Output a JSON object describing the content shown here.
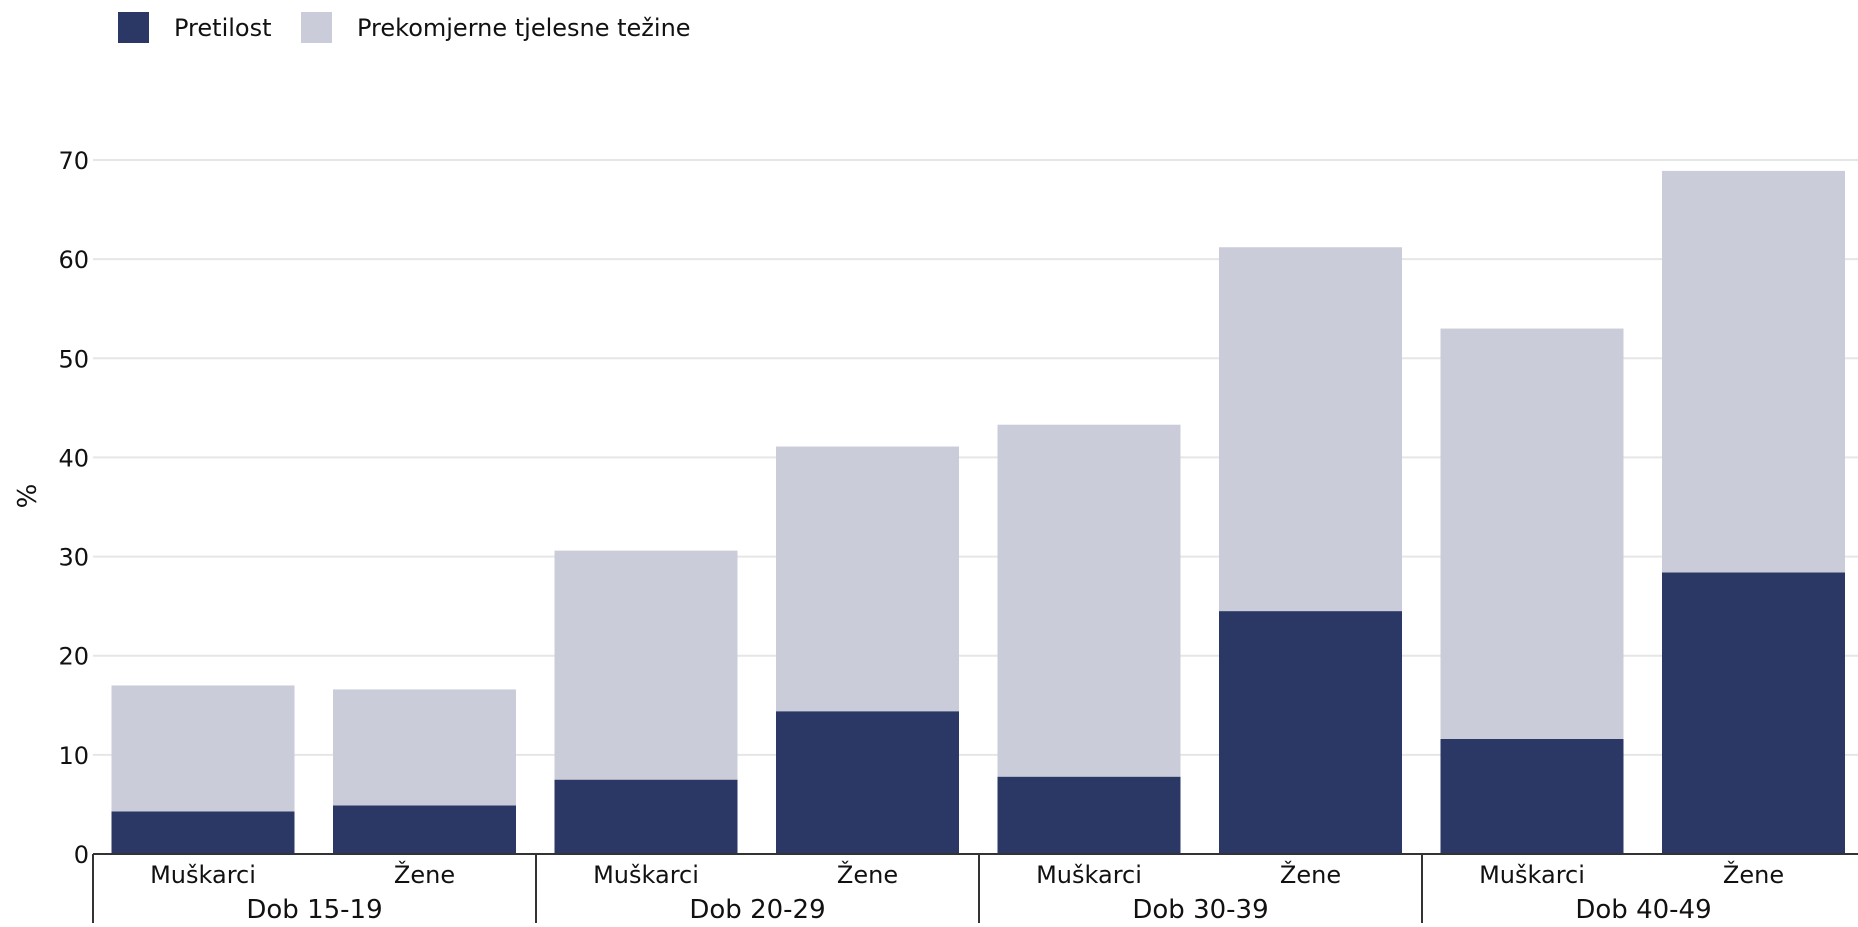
{
  "chart_data": {
    "type": "bar",
    "stacked": true,
    "title": "",
    "xlabel": "",
    "ylabel": "%",
    "ylim": [
      0,
      70
    ],
    "yticks": [
      0,
      10,
      20,
      30,
      40,
      50,
      60,
      70
    ],
    "grid": true,
    "legend_position": "top-left",
    "groups": [
      {
        "label": "Dob 15-19",
        "categories": [
          "Muškarci",
          "Žene"
        ]
      },
      {
        "label": "Dob 20-29",
        "categories": [
          "Muškarci",
          "Žene"
        ]
      },
      {
        "label": "Dob 30-39",
        "categories": [
          "Muškarci",
          "Žene"
        ]
      },
      {
        "label": "Dob 40-49",
        "categories": [
          "Muškarci",
          "Žene"
        ]
      }
    ],
    "categories": [
      "Muškarci",
      "Žene",
      "Muškarci",
      "Žene",
      "Muškarci",
      "Žene",
      "Muškarci",
      "Žene"
    ],
    "series": [
      {
        "name": "Pretilost",
        "color": "#2b3765",
        "values": [
          4.3,
          4.9,
          7.5,
          14.4,
          7.8,
          24.5,
          11.6,
          28.4
        ]
      },
      {
        "name": "Prekomjerne tjelesne težine",
        "color": "#cacdd9",
        "values": [
          12.7,
          11.7,
          23.1,
          26.7,
          35.5,
          36.7,
          41.4,
          40.5
        ]
      }
    ]
  },
  "colors": {
    "grid": "#e6e6e6",
    "axis": "#333333",
    "text": "#111111"
  }
}
